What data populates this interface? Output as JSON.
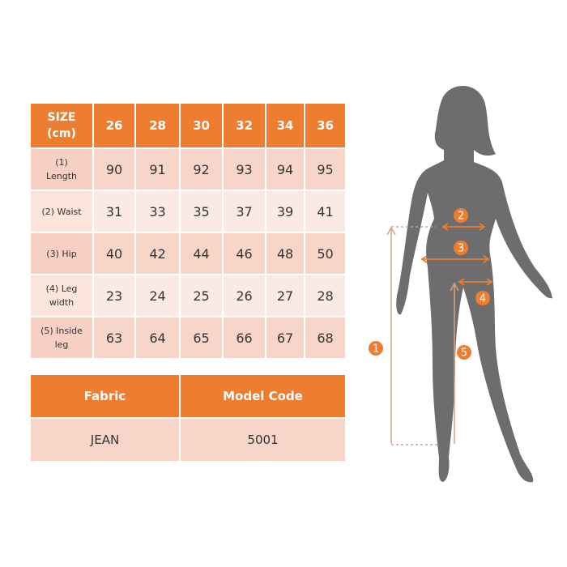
{
  "table": {
    "header_label": [
      "SIZE",
      "(cm)"
    ],
    "sizes": [
      "26",
      "28",
      "30",
      "32",
      "34",
      "36"
    ],
    "rows": [
      {
        "label": [
          "(1)",
          "Length"
        ],
        "values": [
          "90",
          "91",
          "92",
          "93",
          "94",
          "95"
        ]
      },
      {
        "label": [
          "(2) Waist"
        ],
        "values": [
          "31",
          "33",
          "35",
          "37",
          "39",
          "41"
        ]
      },
      {
        "label": [
          "(3) Hip"
        ],
        "values": [
          "40",
          "42",
          "44",
          "46",
          "48",
          "50"
        ]
      },
      {
        "label": [
          "(4) Leg",
          "width"
        ],
        "values": [
          "23",
          "24",
          "25",
          "26",
          "27",
          "28"
        ]
      },
      {
        "label": [
          "(5) Inside",
          "leg"
        ],
        "values": [
          "63",
          "64",
          "65",
          "66",
          "67",
          "68"
        ]
      }
    ]
  },
  "info": {
    "fabric_label": "Fabric",
    "model_code_label": "Model Code",
    "fabric_value": "JEAN",
    "model_code_value": "5001"
  },
  "figure": {
    "markers": [
      "1",
      "2",
      "3",
      "4",
      "5"
    ],
    "silhouette_color": "#6D6D6D",
    "accent_color": "#ED7D31",
    "line_color": "#D9A27E"
  }
}
